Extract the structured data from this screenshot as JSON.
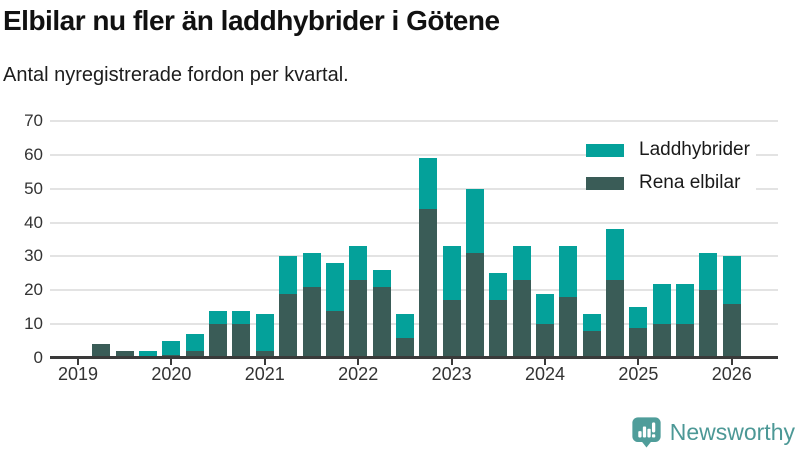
{
  "header": {
    "title": "Elbilar nu fler än laddhybrider i Götene",
    "subtitle": "Antal nyregistrerade fordon per kvartal."
  },
  "chart_data": {
    "type": "bar",
    "stacked": true,
    "title": "Elbilar nu fler än laddhybrider i Götene",
    "subtitle": "Antal nyregistrerade fordon per kvartal.",
    "x": [
      "2019 Q1",
      "2019 Q2",
      "2019 Q3",
      "2019 Q4",
      "2020 Q1",
      "2020 Q2",
      "2020 Q3",
      "2020 Q4",
      "2021 Q1",
      "2021 Q2",
      "2021 Q3",
      "2021 Q4",
      "2022 Q1",
      "2022 Q2",
      "2022 Q3",
      "2022 Q4",
      "2023 Q1",
      "2023 Q2",
      "2023 Q3",
      "2023 Q4",
      "2024 Q1",
      "2024 Q2",
      "2024 Q3",
      "2024 Q4",
      "2025 Q1",
      "2025 Q2",
      "2025 Q3",
      "2025 Q4",
      "2026 Q1"
    ],
    "series": [
      {
        "name": "Laddhybrider",
        "color": "#04a19a",
        "values": [
          0,
          0,
          0,
          2,
          4,
          5,
          4,
          4,
          11,
          11,
          10,
          14,
          10,
          5,
          7,
          15,
          16,
          19,
          8,
          10,
          9,
          15,
          5,
          15,
          6,
          12,
          12,
          11,
          14
        ]
      },
      {
        "name": "Rena elbilar",
        "color": "#3a5c57",
        "values": [
          0,
          4,
          2,
          0,
          1,
          2,
          10,
          10,
          2,
          19,
          21,
          14,
          23,
          21,
          6,
          44,
          17,
          31,
          17,
          23,
          10,
          18,
          8,
          23,
          9,
          10,
          10,
          20,
          16
        ]
      }
    ],
    "totals": [
      0,
      4,
      2,
      2,
      5,
      7,
      14,
      14,
      13,
      30,
      31,
      28,
      33,
      26,
      13,
      59,
      33,
      50,
      25,
      33,
      19,
      33,
      13,
      38,
      15,
      22,
      22,
      31,
      30
    ],
    "stack_order": [
      "Rena elbilar",
      "Laddhybrider"
    ],
    "ylim": [
      0,
      70
    ],
    "yticks": [
      0,
      10,
      20,
      30,
      40,
      50,
      60,
      70
    ],
    "xticklabels": [
      "2019",
      "2020",
      "2021",
      "2022",
      "2023",
      "2024",
      "2025",
      "2026"
    ],
    "grid": true,
    "legend_position": "top-right"
  },
  "legend": {
    "items": [
      {
        "label": "Laddhybrider",
        "color": "#04a19a"
      },
      {
        "label": "Rena elbilar",
        "color": "#3a5c57"
      }
    ]
  },
  "footer": {
    "brand": "Newsworthy",
    "brand_color": "#4c9896",
    "icon_color": "#4f9d9a"
  },
  "colors": {
    "grid": "#e3e3e3",
    "axis": "#3a3a3a",
    "text": "#333333"
  }
}
